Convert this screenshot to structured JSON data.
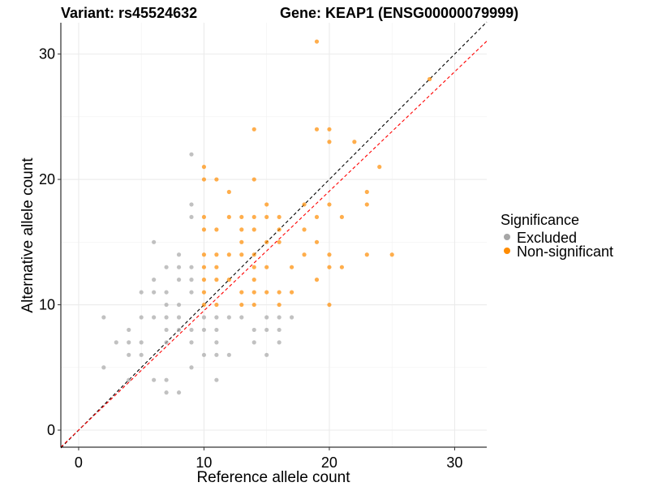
{
  "chart_data": {
    "type": "scatter",
    "title_left": "Variant: rs45524632",
    "title_right": "Gene: KEAP1 (ENSG00000079999)",
    "xlabel": "Reference allele count",
    "ylabel": "Alternative allele count",
    "xlim": [
      -1.42,
      32.56
    ],
    "ylim": [
      -1.36,
      32.5
    ],
    "xticks": [
      0,
      10,
      20,
      30
    ],
    "yticks": [
      0,
      10,
      20,
      30
    ],
    "xtick_labels": [
      "0",
      "10",
      "20",
      "30"
    ],
    "ytick_labels": [
      "0",
      "10",
      "20",
      "30"
    ],
    "grid": true,
    "legend": {
      "title": "Significance",
      "placement": "right",
      "entries": [
        {
          "label": "Excluded",
          "color": "#a6a6a6"
        },
        {
          "label": "Non-significant",
          "color": "#ff8c00"
        }
      ]
    },
    "reference_lines": [
      {
        "name": "identity",
        "slope": 1,
        "intercept": 0,
        "color": "#000000",
        "dash": true
      },
      {
        "name": "fit",
        "slope": 0.953,
        "intercept": 0,
        "color": "#ff0000",
        "dash": true
      }
    ],
    "series": [
      {
        "name": "Excluded",
        "color": "#a6a6a6",
        "points": [
          [
            9,
            22
          ],
          [
            9,
            18
          ],
          [
            9,
            17
          ],
          [
            6,
            15
          ],
          [
            8,
            14
          ],
          [
            7,
            13
          ],
          [
            8,
            13
          ],
          [
            9,
            13
          ],
          [
            6,
            12
          ],
          [
            8,
            12
          ],
          [
            9,
            12
          ],
          [
            5,
            11
          ],
          [
            6,
            11
          ],
          [
            7,
            11
          ],
          [
            9,
            11
          ],
          [
            7,
            10
          ],
          [
            8,
            10
          ],
          [
            2,
            9
          ],
          [
            5,
            9
          ],
          [
            6,
            9
          ],
          [
            7,
            9
          ],
          [
            8,
            9
          ],
          [
            10,
            9
          ],
          [
            11,
            9
          ],
          [
            12,
            9
          ],
          [
            13,
            9
          ],
          [
            15,
            9
          ],
          [
            16,
            9
          ],
          [
            17,
            9
          ],
          [
            4,
            8
          ],
          [
            7,
            8
          ],
          [
            8,
            8
          ],
          [
            9,
            8
          ],
          [
            10,
            8
          ],
          [
            11,
            8
          ],
          [
            14,
            8
          ],
          [
            15,
            8
          ],
          [
            16,
            8
          ],
          [
            3,
            7
          ],
          [
            4,
            7
          ],
          [
            5,
            7
          ],
          [
            7,
            7
          ],
          [
            9,
            7
          ],
          [
            11,
            7
          ],
          [
            14,
            7
          ],
          [
            16,
            7
          ],
          [
            4,
            6
          ],
          [
            5,
            6
          ],
          [
            10,
            6
          ],
          [
            11,
            6
          ],
          [
            12,
            6
          ],
          [
            15,
            6
          ],
          [
            2,
            5
          ],
          [
            9,
            5
          ],
          [
            4,
            4
          ],
          [
            6,
            4
          ],
          [
            7,
            4
          ],
          [
            11,
            4
          ],
          [
            7,
            3
          ],
          [
            8,
            3
          ]
        ]
      },
      {
        "name": "Non-significant",
        "color": "#ff8c00",
        "points": [
          [
            19,
            31
          ],
          [
            28,
            28
          ],
          [
            14,
            24
          ],
          [
            19,
            24
          ],
          [
            20,
            24
          ],
          [
            20,
            23
          ],
          [
            22,
            23
          ],
          [
            10,
            21
          ],
          [
            24,
            21
          ],
          [
            10,
            20
          ],
          [
            11,
            20
          ],
          [
            14,
            20
          ],
          [
            12,
            19
          ],
          [
            23,
            19
          ],
          [
            15,
            18
          ],
          [
            18,
            18
          ],
          [
            20,
            18
          ],
          [
            23,
            18
          ],
          [
            10,
            17
          ],
          [
            12,
            17
          ],
          [
            13,
            17
          ],
          [
            14,
            17
          ],
          [
            15,
            17
          ],
          [
            16,
            17
          ],
          [
            19,
            17
          ],
          [
            21,
            17
          ],
          [
            10,
            16
          ],
          [
            11,
            16
          ],
          [
            13,
            16
          ],
          [
            14,
            16
          ],
          [
            16,
            16
          ],
          [
            18,
            16
          ],
          [
            13,
            15
          ],
          [
            15,
            15
          ],
          [
            16,
            15
          ],
          [
            19,
            15
          ],
          [
            10,
            14
          ],
          [
            11,
            14
          ],
          [
            12,
            14
          ],
          [
            13,
            14
          ],
          [
            14,
            14
          ],
          [
            18,
            14
          ],
          [
            20,
            14
          ],
          [
            23,
            14
          ],
          [
            25,
            14
          ],
          [
            10,
            13
          ],
          [
            11,
            13
          ],
          [
            14,
            13
          ],
          [
            15,
            13
          ],
          [
            17,
            13
          ],
          [
            20,
            13
          ],
          [
            21,
            13
          ],
          [
            10,
            12
          ],
          [
            11,
            12
          ],
          [
            12,
            12
          ],
          [
            14,
            12
          ],
          [
            19,
            12
          ],
          [
            10,
            11
          ],
          [
            13,
            11
          ],
          [
            14,
            11
          ],
          [
            15,
            11
          ],
          [
            16,
            11
          ],
          [
            17,
            11
          ],
          [
            10,
            10
          ],
          [
            11,
            10
          ],
          [
            13,
            10
          ],
          [
            14,
            10
          ],
          [
            16,
            10
          ],
          [
            20,
            10
          ]
        ]
      }
    ]
  }
}
